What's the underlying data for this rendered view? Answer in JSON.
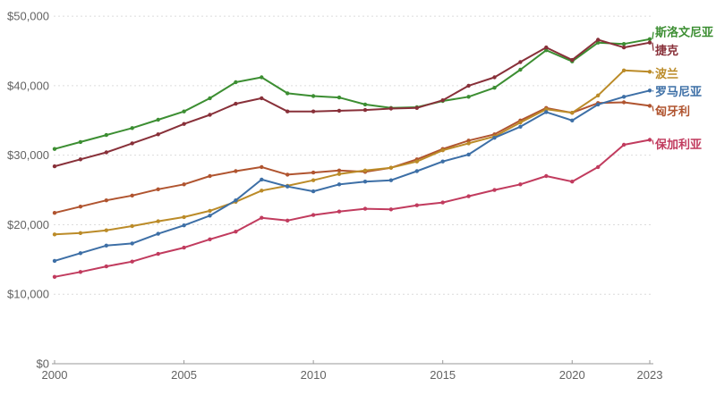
{
  "chart_data": {
    "type": "line",
    "title": "",
    "xlabel": "",
    "ylabel": "",
    "x": [
      2000,
      2001,
      2002,
      2003,
      2004,
      2005,
      2006,
      2007,
      2008,
      2009,
      2010,
      2011,
      2012,
      2013,
      2014,
      2015,
      2016,
      2017,
      2018,
      2019,
      2020,
      2021,
      2022,
      2023
    ],
    "x_ticks": [
      2000,
      2005,
      2010,
      2015,
      2020,
      2023
    ],
    "x_tick_labels": [
      "2000",
      "2005",
      "2010",
      "2015",
      "2020",
      "2023"
    ],
    "y_ticks": [
      0,
      10000,
      20000,
      30000,
      40000,
      50000
    ],
    "y_tick_labels": [
      "$0",
      "$10,000",
      "$20,000",
      "$30,000",
      "$40,000",
      "$50,000"
    ],
    "ylim": [
      0,
      50000
    ],
    "xlim": [
      2000,
      2023
    ],
    "grid": "horizontal-dashed",
    "legend_position": "right-end-labels",
    "series": [
      {
        "id": "hungary",
        "label": "匈牙利",
        "color": "#B0542F",
        "label_dy": 6,
        "values": [
          21700,
          22600,
          23500,
          24200,
          25100,
          25800,
          27000,
          27700,
          28300,
          27200,
          27500,
          27800,
          27600,
          28200,
          29400,
          30900,
          32100,
          33000,
          35000,
          36800,
          36100,
          37500,
          37600,
          37100
        ]
      },
      {
        "id": "poland",
        "label": "波兰",
        "color": "#BB8B28",
        "label_dy": 2,
        "values": [
          18600,
          18800,
          19200,
          19800,
          20500,
          21100,
          22000,
          23300,
          24900,
          25600,
          26400,
          27300,
          27800,
          28200,
          29100,
          30700,
          31700,
          32700,
          34700,
          36600,
          36100,
          38600,
          42200,
          42000
        ]
      },
      {
        "id": "romania",
        "label": "罗马尼亚",
        "color": "#3D6FA6",
        "label_dy": 1,
        "values": [
          14800,
          15900,
          17000,
          17300,
          18700,
          19900,
          21300,
          23500,
          26500,
          25500,
          24800,
          25800,
          26200,
          26400,
          27700,
          29100,
          30100,
          32500,
          34100,
          36200,
          35000,
          37300,
          38400,
          39300
        ]
      },
      {
        "id": "bulgaria",
        "label": "保加利亚",
        "color": "#C13B5E",
        "label_dy": 5,
        "values": [
          12500,
          13200,
          14000,
          14700,
          15800,
          16700,
          17900,
          19000,
          21000,
          20600,
          21400,
          21900,
          22300,
          22200,
          22800,
          23200,
          24100,
          25000,
          25800,
          27000,
          26200,
          28300,
          31500,
          32200
        ]
      },
      {
        "id": "slovenia",
        "label": "斯洛文尼亚",
        "color": "#3C8E32",
        "label_dy": -8,
        "values": [
          30900,
          31900,
          32900,
          33900,
          35100,
          36300,
          38200,
          40500,
          41200,
          38900,
          38500,
          38300,
          37300,
          36800,
          36900,
          37800,
          38400,
          39700,
          42300,
          45100,
          43500,
          46200,
          46000,
          46700
        ]
      },
      {
        "id": "czechia",
        "label": "捷克",
        "color": "#883039",
        "label_dy": 9,
        "values": [
          28400,
          29400,
          30400,
          31700,
          33000,
          34500,
          35800,
          37400,
          38200,
          36300,
          36300,
          36400,
          36500,
          36700,
          36800,
          37900,
          40000,
          41200,
          43400,
          45500,
          43700,
          46600,
          45500,
          46200
        ]
      }
    ]
  },
  "colors": {
    "background": "#ffffff",
    "grid_line": "#dcdcdc",
    "axis_line": "#9a9a9a",
    "axis_text": "#636363"
  }
}
